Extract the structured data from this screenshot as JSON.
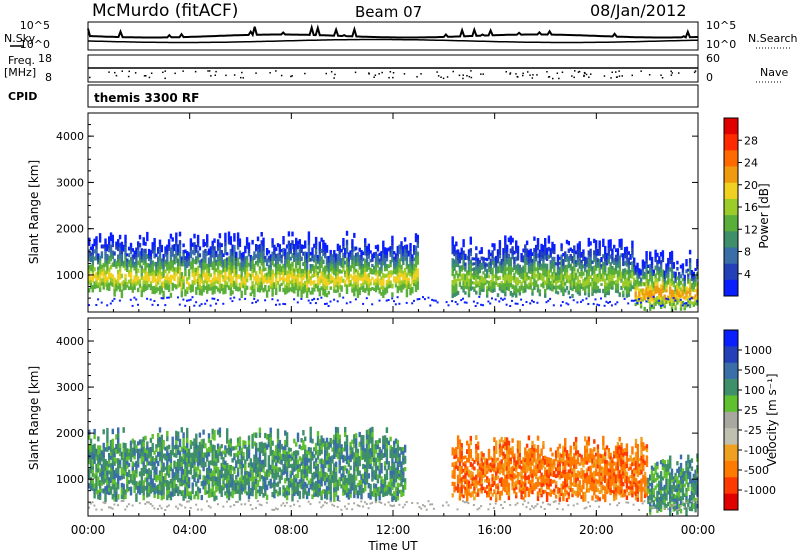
{
  "header": {
    "station": "McMurdo (fitACF)",
    "beam": "Beam 07",
    "date": "08/Jan/2012"
  },
  "side_labels": {
    "nsky": "N.Sky",
    "nsearch": "N.Search",
    "freq": "Freq.",
    "freq_unit": "[MHz]",
    "nave": "Nave",
    "cpid": "CPID"
  },
  "cpid_name": "themis 3300 RF",
  "noise_panel": {
    "left_ticks": [
      "10^5",
      "10^0"
    ],
    "right_ticks": [
      "10^5",
      "10^0"
    ]
  },
  "freq_panel": {
    "left_ticks": [
      "18",
      "8"
    ],
    "right_ticks": [
      "60",
      "0"
    ]
  },
  "colors": {
    "power_scale": [
      "#0a1fff",
      "#2340b8",
      "#3a6ea8",
      "#3f8f6a",
      "#5aae3a",
      "#9ccc2a",
      "#f0d020",
      "#f09a10",
      "#ff6a00",
      "#ff2a00",
      "#e00000"
    ],
    "velocity_scale": [
      "#e00000",
      "#ff3a00",
      "#ff7a00",
      "#f0a020",
      "#c0c0b0",
      "#a8a8a0",
      "#60c030",
      "#3f8f6a",
      "#3a6ea8",
      "#2340b8",
      "#0a1fff"
    ]
  },
  "chart_data": [
    {
      "type": "heatmap",
      "title": "Power",
      "ylabel": "Slant Range [km]",
      "ylim": [
        200,
        4500
      ],
      "yticks": [
        "1000",
        "2000",
        "3000",
        "4000"
      ],
      "xticks": [
        "00:00",
        "04:00",
        "08:00",
        "12:00",
        "16:00",
        "20:00",
        "00:00"
      ],
      "colorbar": {
        "label": "Power [dB]",
        "ticks": [
          "28",
          "24",
          "20",
          "16",
          "12",
          "8",
          "4"
        ],
        "range": [
          0,
          30
        ]
      },
      "echo_bands": [
        {
          "start_ut": 0.0,
          "end_ut": 13.0,
          "range_km": [
            600,
            1600
          ],
          "power_db": 18
        },
        {
          "start_ut": 14.3,
          "end_ut": 21.5,
          "range_km": [
            600,
            1500
          ],
          "power_db": 16
        },
        {
          "start_ut": 21.5,
          "end_ut": 24.0,
          "range_km": [
            300,
            1200
          ],
          "power_db": 22
        }
      ]
    },
    {
      "type": "heatmap",
      "title": "Velocity",
      "ylabel": "Slant Range [km]",
      "ylim": [
        200,
        4500
      ],
      "yticks": [
        "1000",
        "2000",
        "3000",
        "4000"
      ],
      "xticks": [
        "00:00",
        "04:00",
        "08:00",
        "12:00",
        "16:00",
        "20:00",
        "00:00"
      ],
      "xlabel": "Time UT",
      "colorbar": {
        "label": "Velocity [m s⁻¹]",
        "ticks": [
          "1000",
          "500",
          "100",
          "25",
          "-25",
          "-100",
          "-500",
          "-1000"
        ]
      },
      "echo_bands": [
        {
          "start_ut": 0.0,
          "end_ut": 12.5,
          "range_km": [
            600,
            1800
          ],
          "velocity_ms": 200
        },
        {
          "start_ut": 14.3,
          "end_ut": 22.0,
          "range_km": [
            600,
            1600
          ],
          "velocity_ms": -150
        },
        {
          "start_ut": 22.0,
          "end_ut": 24.0,
          "range_km": [
            300,
            1200
          ],
          "velocity_ms": 150
        }
      ]
    }
  ],
  "time_axis_label": "Time UT"
}
